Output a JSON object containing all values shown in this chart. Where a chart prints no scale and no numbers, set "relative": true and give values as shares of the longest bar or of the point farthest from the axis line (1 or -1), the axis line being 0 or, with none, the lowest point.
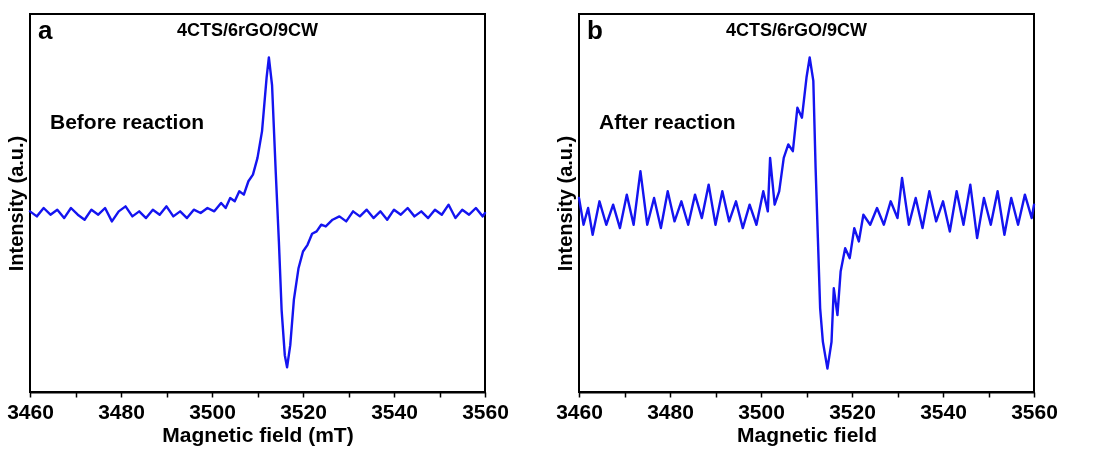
{
  "chart_data": [
    {
      "type": "line",
      "title": "4CTS/6rGO/9CW",
      "xlabel": "Magnetic field (mT)",
      "ylabel": "Intensity (a.u.)",
      "annotations": [
        "a",
        "Before reaction"
      ],
      "relative": true,
      "marker": "none",
      "line_style": "solid",
      "xlim": [
        3460,
        3560
      ],
      "xticks": [
        3460,
        {
          "value": 3470,
          "label": null
        },
        3480,
        {
          "value": 3490,
          "label": null
        },
        3500,
        {
          "value": 3510,
          "label": null
        },
        3520,
        {
          "value": 3530,
          "label": null
        },
        3540,
        {
          "value": 3550,
          "label": null
        },
        3560
      ],
      "series": [
        {
          "color": "#1414f0",
          "x": [
            3460,
            3461.5,
            3463,
            3464.5,
            3466,
            3467.5,
            3469,
            3470.5,
            3472,
            3473.5,
            3475,
            3476.5,
            3478,
            3479.5,
            3481,
            3482.5,
            3484,
            3485.5,
            3487,
            3488.5,
            3490,
            3491.5,
            3493,
            3494.5,
            3496,
            3497.5,
            3499,
            3500.5,
            3502,
            3503,
            3504,
            3505,
            3506,
            3507,
            3508,
            3509,
            3510,
            3511,
            3512,
            3512.5,
            3513.2,
            3514,
            3514.7,
            3515.3,
            3516,
            3516.5,
            3517.2,
            3518,
            3519,
            3520,
            3521,
            3522,
            3523,
            3524,
            3525,
            3526.5,
            3528,
            3529.5,
            3531,
            3532.5,
            3534,
            3535.5,
            3537,
            3538.5,
            3540,
            3541.5,
            3543,
            3544.5,
            3546,
            3547.5,
            3549,
            3550.5,
            3552,
            3553.5,
            3555,
            3556.5,
            3558,
            3559.5,
            3560
          ],
          "values": [
            0.54,
            0.525,
            0.55,
            0.53,
            0.545,
            0.52,
            0.55,
            0.53,
            0.515,
            0.545,
            0.53,
            0.55,
            0.51,
            0.54,
            0.555,
            0.525,
            0.54,
            0.52,
            0.545,
            0.53,
            0.555,
            0.525,
            0.54,
            0.52,
            0.545,
            0.535,
            0.55,
            0.54,
            0.565,
            0.55,
            0.58,
            0.57,
            0.6,
            0.59,
            0.63,
            0.65,
            0.7,
            0.78,
            0.94,
            1,
            0.917,
            0.66,
            0.45,
            0.245,
            0.11,
            0.074,
            0.14,
            0.276,
            0.369,
            0.42,
            0.44,
            0.473,
            0.48,
            0.5,
            0.495,
            0.515,
            0.525,
            0.51,
            0.54,
            0.525,
            0.545,
            0.52,
            0.54,
            0.515,
            0.545,
            0.53,
            0.55,
            0.525,
            0.54,
            0.52,
            0.545,
            0.53,
            0.56,
            0.52,
            0.545,
            0.53,
            0.55,
            0.525,
            0.535
          ]
        }
      ]
    },
    {
      "type": "line",
      "title": "4CTS/6rGO/9CW",
      "xlabel": "Magnetic field",
      "ylabel": "Intensity (a.u.)",
      "annotations": [
        "b",
        "After reaction"
      ],
      "relative": true,
      "marker": "none",
      "line_style": "solid",
      "xlim": [
        3460,
        3560
      ],
      "xticks": [
        3460,
        {
          "value": 3470,
          "label": null
        },
        3480,
        {
          "value": 3490,
          "label": null
        },
        3500,
        {
          "value": 3510,
          "label": null
        },
        3520,
        {
          "value": 3530,
          "label": null
        },
        3540,
        {
          "value": 3550,
          "label": null
        },
        3560
      ],
      "series": [
        {
          "color": "#1414f0",
          "x": [
            3460,
            3461,
            3462,
            3463,
            3464.5,
            3466,
            3467.5,
            3469,
            3470.5,
            3472,
            3473.5,
            3475,
            3476.5,
            3478,
            3479.5,
            3481,
            3482.5,
            3484,
            3485.5,
            3487,
            3488.5,
            3490,
            3491.5,
            3493,
            3494.5,
            3496,
            3497.5,
            3499,
            3500.5,
            3501.5,
            3502,
            3503,
            3504,
            3505,
            3506,
            3507,
            3508,
            3509,
            3510,
            3510.7,
            3511.5,
            3512,
            3512.5,
            3513,
            3513.6,
            3514.6,
            3515.5,
            3516,
            3516.8,
            3517.5,
            3518.5,
            3519.5,
            3520.5,
            3521.5,
            3522.5,
            3524,
            3525.5,
            3527,
            3528.5,
            3530,
            3531,
            3532.5,
            3534,
            3535.5,
            3537,
            3538.5,
            3540,
            3541.5,
            3543,
            3544.5,
            3546,
            3547.5,
            3549,
            3550.5,
            3552,
            3553.5,
            3555,
            3556.5,
            3558,
            3559.5,
            3560
          ],
          "values": [
            0.58,
            0.5,
            0.55,
            0.47,
            0.57,
            0.5,
            0.56,
            0.49,
            0.59,
            0.5,
            0.66,
            0.5,
            0.58,
            0.49,
            0.6,
            0.51,
            0.57,
            0.5,
            0.59,
            0.52,
            0.62,
            0.5,
            0.6,
            0.51,
            0.57,
            0.49,
            0.56,
            0.5,
            0.6,
            0.54,
            0.7,
            0.56,
            0.6,
            0.7,
            0.74,
            0.72,
            0.85,
            0.82,
            0.94,
            1,
            0.93,
            0.67,
            0.46,
            0.25,
            0.15,
            0.07,
            0.15,
            0.31,
            0.23,
            0.36,
            0.43,
            0.4,
            0.49,
            0.45,
            0.53,
            0.5,
            0.55,
            0.5,
            0.57,
            0.52,
            0.64,
            0.5,
            0.58,
            0.49,
            0.6,
            0.51,
            0.57,
            0.48,
            0.6,
            0.5,
            0.62,
            0.46,
            0.58,
            0.5,
            0.6,
            0.47,
            0.58,
            0.5,
            0.59,
            0.52,
            0.56
          ]
        }
      ]
    }
  ]
}
